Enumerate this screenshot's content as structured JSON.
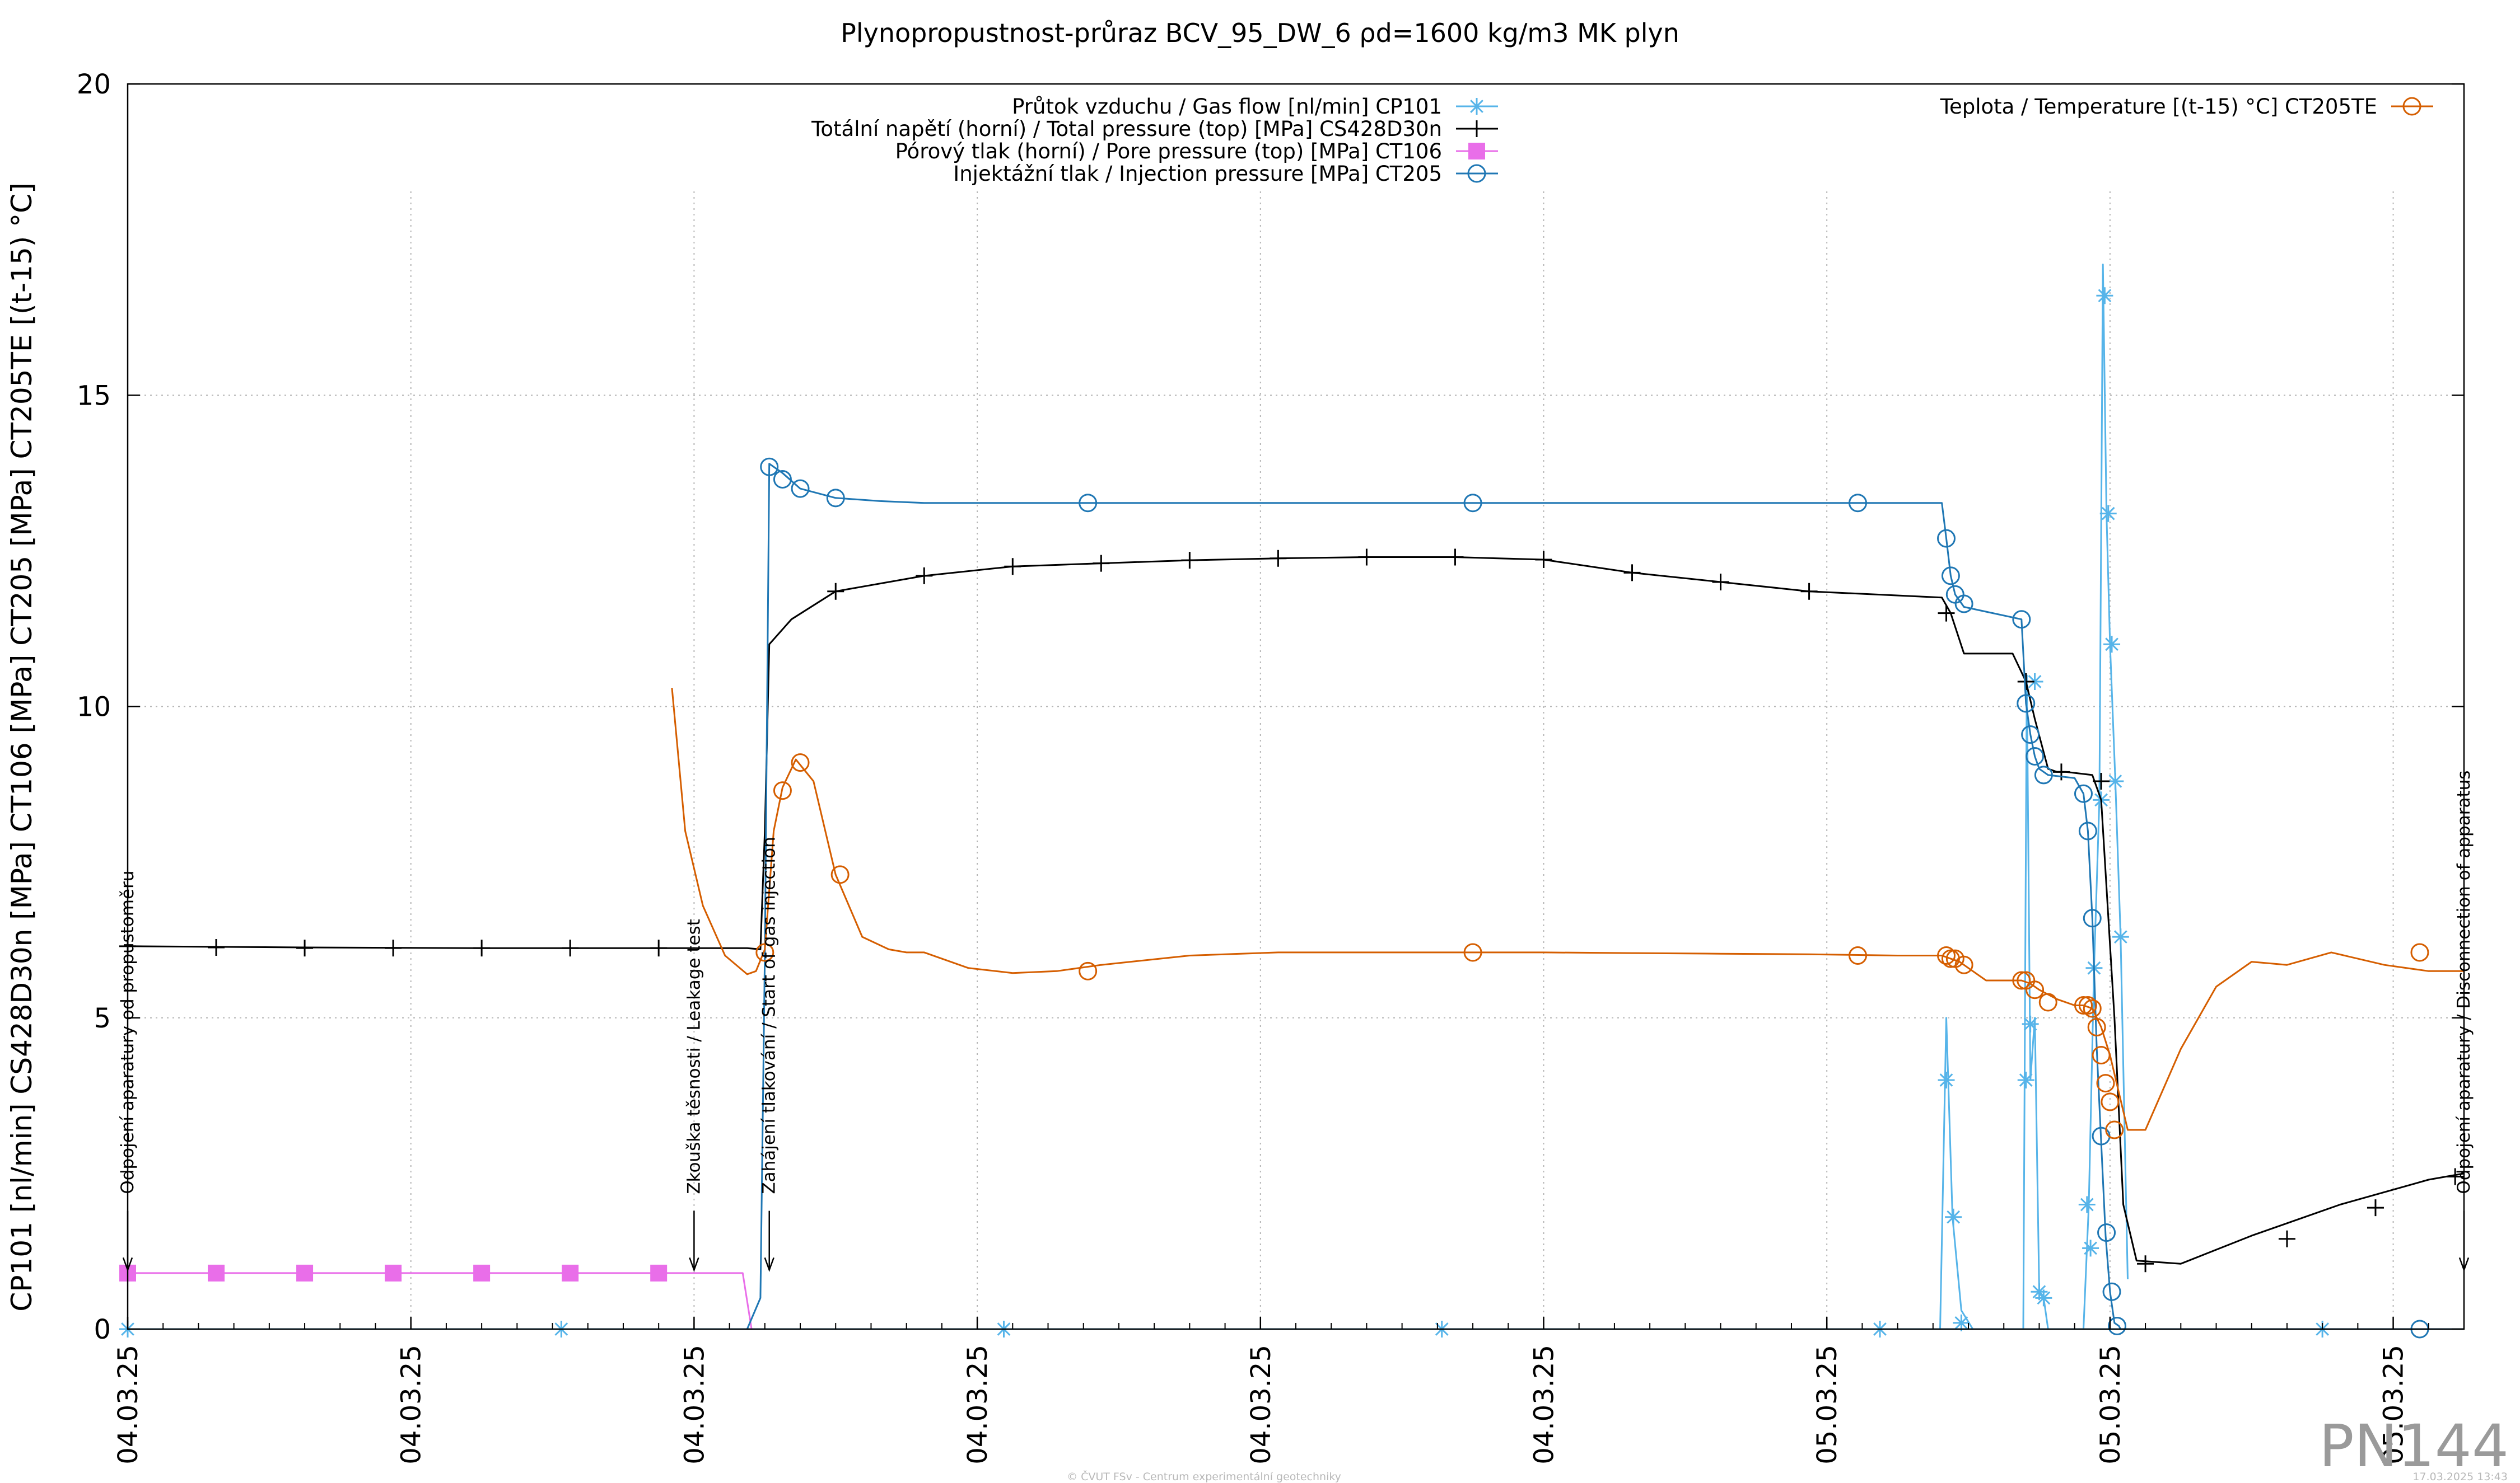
{
  "chart_data": {
    "type": "line",
    "title": "Plynopropustnost-průraz BCV_95_DW_6 ρd=1600 kg/m3 MK plyn",
    "ylabel": "CP101 [nl/min] CS428D30n [MPa] CT106 [MPa] CT205 [MPa] CT205TE [(t-15) °C]",
    "xlabel": "",
    "ylim": [
      0,
      20
    ],
    "xlim": [
      0,
      26.4
    ],
    "yticks": [
      0,
      5,
      10,
      15,
      20
    ],
    "xtick_values": [
      0,
      3.2,
      6.4,
      9.6,
      12.8,
      16,
      19.2,
      22.4,
      25.6
    ],
    "xtick_labels": [
      "04.03.25",
      "04.03.25",
      "04.03.25",
      "04.03.25",
      "04.03.25",
      "04.03.25",
      "05.03.25",
      "05.03.25",
      "05.03.25"
    ],
    "grid": true,
    "legend_position": "top",
    "series": [
      {
        "name": "Průtok vzduchu / Gas flow [nl/min] CP101",
        "color": "#56b4e9",
        "marker": "asterisk",
        "x": [
          0,
          7.2,
          7.21,
          25,
          26.4
        ],
        "y": [
          0,
          0,
          0,
          0,
          0
        ],
        "spikes": [
          {
            "x": [
              20.48,
              20.55,
              20.62,
              20.72,
              20.85
            ],
            "y": [
              0,
              5.0,
              1.8,
              0.3,
              0
            ]
          },
          {
            "x": [
              21.42,
              21.46,
              21.5,
              21.55,
              21.6,
              21.65,
              21.7
            ],
            "y": [
              0,
              10.5,
              4.0,
              5.0,
              0.6,
              0.5,
              0
            ]
          },
          {
            "x": [
              22.1,
              22.16,
              22.22,
              22.28,
              22.32,
              22.36,
              22.4,
              22.46,
              22.52,
              22.6
            ],
            "y": [
              0,
              2.0,
              5.8,
              8.5,
              17.1,
              13.1,
              11.0,
              8.8,
              6.3,
              0.8
            ]
          }
        ],
        "marker_points": {
          "x": [
            0,
            4.9,
            9.9,
            14.85,
            19.8,
            24.8,
            20.55,
            20.63,
            20.72,
            21.45,
            21.5,
            21.55,
            21.6,
            21.65,
            22.14,
            22.18,
            22.22,
            22.3,
            22.34,
            22.38,
            22.42,
            22.46,
            22.52
          ],
          "y": [
            0,
            0,
            0,
            0,
            0,
            0,
            4.0,
            1.8,
            0.1,
            4.0,
            4.9,
            10.4,
            0.6,
            0.5,
            2.0,
            1.3,
            5.8,
            8.5,
            16.6,
            13.1,
            11.0,
            8.8,
            6.3
          ]
        }
      },
      {
        "name": "Totální napětí (horní) / Total pressure (top) [MPa] CS428D30n",
        "color": "#000000",
        "marker": "plus",
        "x": [
          0,
          2,
          4,
          6,
          7.0,
          7.15,
          7.2,
          7.25,
          7.5,
          8.0,
          9.0,
          10.0,
          11.0,
          12.0,
          13.0,
          14.0,
          15.0,
          16.0,
          17.0,
          18.0,
          19.0,
          20.5,
          20.6,
          20.75,
          21.3,
          21.45,
          21.55,
          21.7,
          21.8,
          21.9,
          22.2,
          22.3,
          22.45,
          22.55,
          22.7,
          23.2,
          24.0,
          25.0,
          26.0,
          26.4
        ],
        "y": [
          6.15,
          6.13,
          6.12,
          6.12,
          6.12,
          6.1,
          8.0,
          11.0,
          11.4,
          11.85,
          12.1,
          12.25,
          12.3,
          12.35,
          12.38,
          12.4,
          12.4,
          12.36,
          12.15,
          12.0,
          11.85,
          11.75,
          11.5,
          10.85,
          10.85,
          10.4,
          9.8,
          9.0,
          8.95,
          8.95,
          8.9,
          8.5,
          5.0,
          2.0,
          1.1,
          1.05,
          1.5,
          2.0,
          2.4,
          2.5
        ],
        "marker_points": {
          "x": [
            0,
            1.0,
            2.0,
            3.0,
            4.0,
            5.0,
            6.0,
            8.0,
            9.0,
            10.0,
            11.0,
            12.0,
            13.0,
            14.0,
            15.0,
            16.0,
            17.0,
            18.0,
            19.0,
            20.55,
            21.45,
            21.85,
            22.3,
            22.8,
            24.4,
            25.4,
            26.3
          ],
          "y": [
            6.15,
            6.13,
            6.12,
            6.12,
            6.12,
            6.12,
            6.12,
            11.85,
            12.1,
            12.25,
            12.3,
            12.35,
            12.38,
            12.4,
            12.4,
            12.36,
            12.15,
            12.0,
            11.85,
            11.5,
            10.4,
            8.95,
            8.8,
            1.05,
            1.45,
            1.95,
            2.45
          ]
        }
      },
      {
        "name": "Pórový tlak (horní) / Pore pressure (top) [MPa] CT106",
        "color": "#e96ee9",
        "marker": "filled-square",
        "x": [
          0,
          6.8,
          6.95,
          7.05
        ],
        "y": [
          0.9,
          0.9,
          0.9,
          0
        ],
        "marker_points": {
          "x": [
            0,
            1.0,
            2.0,
            3.0,
            4.0,
            5.0,
            6.0
          ],
          "y": [
            0.9,
            0.9,
            0.9,
            0.9,
            0.9,
            0.9,
            0.9
          ]
        }
      },
      {
        "name": "Injektážní tlak / Injection pressure [MPa] CT205",
        "color": "#1f77b4",
        "marker": "circle",
        "x": [
          7.0,
          7.15,
          7.2,
          7.25,
          7.4,
          7.6,
          8.0,
          8.5,
          9.0,
          10.0,
          12.0,
          14.0,
          16.0,
          18.0,
          20.0,
          20.5,
          20.55,
          20.6,
          20.65,
          20.75,
          21.4,
          21.45,
          21.5,
          21.55,
          21.6,
          21.7,
          22.0,
          22.1,
          22.15,
          22.2,
          22.25,
          22.3,
          22.35,
          22.4,
          22.45,
          22.5,
          22.52,
          26.4
        ],
        "y": [
          0,
          0.5,
          6.0,
          13.9,
          13.75,
          13.5,
          13.35,
          13.3,
          13.27,
          13.27,
          13.27,
          13.27,
          13.27,
          13.27,
          13.27,
          13.27,
          12.7,
          12.1,
          11.8,
          11.6,
          11.4,
          10.05,
          9.55,
          9.2,
          9.0,
          8.9,
          8.85,
          8.6,
          8.0,
          6.6,
          4.5,
          3.0,
          1.5,
          0.6,
          0.1,
          0.05,
          0,
          0
        ],
        "marker_points": {
          "x": [
            7.25,
            7.4,
            7.6,
            8.0,
            10.85,
            15.2,
            19.55,
            20.55,
            20.6,
            20.65,
            20.75,
            21.4,
            21.45,
            21.5,
            21.55,
            21.65,
            22.1,
            22.15,
            22.2,
            22.3,
            22.36,
            22.42,
            22.48,
            25.9
          ],
          "y": [
            13.85,
            13.65,
            13.5,
            13.35,
            13.27,
            13.27,
            13.27,
            12.7,
            12.1,
            11.8,
            11.65,
            11.4,
            10.05,
            9.55,
            9.2,
            8.9,
            8.6,
            8.0,
            6.6,
            3.1,
            1.55,
            0.6,
            0.05,
            0
          ]
        }
      },
      {
        "name": "Teplota / Temperature [(t-15) °C] CT205TE",
        "color": "#d55e00",
        "marker": "circle",
        "x": [
          6.15,
          6.3,
          6.5,
          6.75,
          7.0,
          7.1,
          7.2,
          7.3,
          7.4,
          7.55,
          7.75,
          8.0,
          8.3,
          8.6,
          8.8,
          9.0,
          9.5,
          10.0,
          10.5,
          11.0,
          12.0,
          13.0,
          14.0,
          15.0,
          16.0,
          17.0,
          18.0,
          19.0,
          20.0,
          20.5,
          20.6,
          20.7,
          20.8,
          21.0,
          21.4,
          21.5,
          21.6,
          21.8,
          22.0,
          22.1,
          22.2,
          22.3,
          22.4,
          22.5,
          22.6,
          22.8,
          23.2,
          23.6,
          24.0,
          24.4,
          24.9,
          25.5,
          26.0,
          26.4
        ],
        "y": [
          10.3,
          8.0,
          6.8,
          6.0,
          5.7,
          5.75,
          6.1,
          8.0,
          8.7,
          9.15,
          8.8,
          7.3,
          6.3,
          6.1,
          6.05,
          6.05,
          5.8,
          5.72,
          5.75,
          5.85,
          6.0,
          6.05,
          6.05,
          6.05,
          6.05,
          6.04,
          6.03,
          6.02,
          6.0,
          6.0,
          5.95,
          5.9,
          5.8,
          5.6,
          5.6,
          5.55,
          5.45,
          5.3,
          5.2,
          5.2,
          5.15,
          4.85,
          4.4,
          3.8,
          3.2,
          3.2,
          4.5,
          5.5,
          5.9,
          5.85,
          6.05,
          5.85,
          5.75,
          5.75
        ],
        "marker_points": {
          "x": [
            7.2,
            7.4,
            7.6,
            8.05,
            10.85,
            15.2,
            19.55,
            20.55,
            20.6,
            20.65,
            20.75,
            21.4,
            21.45,
            21.55,
            21.7,
            22.1,
            22.15,
            22.2,
            22.25,
            22.3,
            22.35,
            22.4,
            22.45,
            25.9
          ],
          "y": [
            6.05,
            8.65,
            9.1,
            7.3,
            5.75,
            6.05,
            6.0,
            6.0,
            5.95,
            5.95,
            5.85,
            5.6,
            5.6,
            5.45,
            5.25,
            5.2,
            5.2,
            5.15,
            4.85,
            4.4,
            3.95,
            3.65,
            3.2,
            6.05
          ]
        }
      }
    ],
    "annotations": [
      {
        "text": "Odpojení aparatury od propustoměru",
        "x": 0
      },
      {
        "text": "Zkouška těsnosti / Leakage test",
        "x": 6.4
      },
      {
        "text": "Zahájení tlakování / Start of gas injection",
        "x": 7.25
      },
      {
        "text": "Odpojení aparatury / Disconnection of apparatus",
        "x": 26.4
      }
    ]
  },
  "watermark": "PN144",
  "footer_left": "© ČVUT FSv - Centrum experimentální geotechniky",
  "footer_right": "17.03.2025 13:43"
}
